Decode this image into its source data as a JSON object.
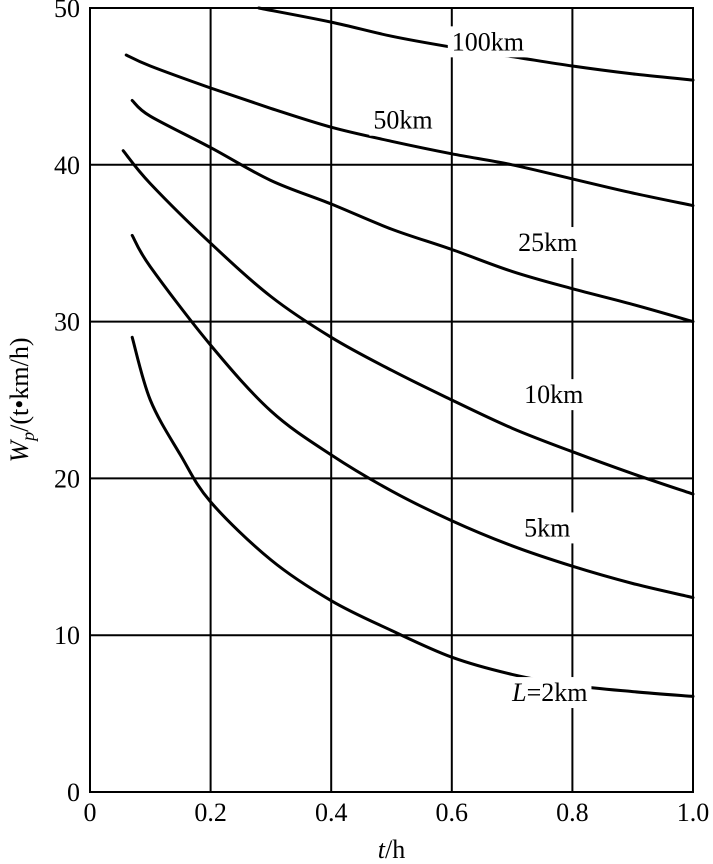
{
  "chart_data": {
    "type": "line",
    "xlabel": "t/h",
    "ylabel": "Wp/(t•km/h)",
    "xlim": [
      0,
      1.0
    ],
    "ylim": [
      0,
      50
    ],
    "xticks": [
      "0",
      "0.2",
      "0.4",
      "0.6",
      "0.8",
      "1.0"
    ],
    "yticks": [
      "0",
      "10",
      "20",
      "30",
      "40",
      "50"
    ],
    "grid": true,
    "series": [
      {
        "name": "100km",
        "label_at": [
          0.6,
          47.3
        ],
        "points": [
          [
            0.28,
            50
          ],
          [
            0.4,
            49.1
          ],
          [
            0.5,
            48.2
          ],
          [
            0.6,
            47.5
          ],
          [
            0.7,
            46.9
          ],
          [
            0.8,
            46.3
          ],
          [
            0.9,
            45.8
          ],
          [
            1.0,
            45.4
          ]
        ]
      },
      {
        "name": "50km",
        "label_at": [
          0.47,
          42.3
        ],
        "points": [
          [
            0.06,
            47
          ],
          [
            0.1,
            46.3
          ],
          [
            0.2,
            44.9
          ],
          [
            0.3,
            43.6
          ],
          [
            0.4,
            42.4
          ],
          [
            0.5,
            41.5
          ],
          [
            0.6,
            40.7
          ],
          [
            0.7,
            40.0
          ],
          [
            0.8,
            39.1
          ],
          [
            0.9,
            38.2
          ],
          [
            1.0,
            37.4
          ]
        ]
      },
      {
        "name": "25km",
        "label_at": [
          0.71,
          34.5
        ],
        "points": [
          [
            0.07,
            44.1
          ],
          [
            0.1,
            43.1
          ],
          [
            0.2,
            41.1
          ],
          [
            0.3,
            39.0
          ],
          [
            0.4,
            37.5
          ],
          [
            0.5,
            35.9
          ],
          [
            0.6,
            34.6
          ],
          [
            0.7,
            33.2
          ],
          [
            0.8,
            32.1
          ],
          [
            0.9,
            31.1
          ],
          [
            1.0,
            30.0
          ]
        ]
      },
      {
        "name": "10km",
        "label_at": [
          0.72,
          24.8
        ],
        "points": [
          [
            0.055,
            40.9
          ],
          [
            0.1,
            38.8
          ],
          [
            0.2,
            35.0
          ],
          [
            0.3,
            31.6
          ],
          [
            0.4,
            29.0
          ],
          [
            0.5,
            26.9
          ],
          [
            0.6,
            25.0
          ],
          [
            0.7,
            23.2
          ],
          [
            0.8,
            21.7
          ],
          [
            0.9,
            20.3
          ],
          [
            1.0,
            19.0
          ]
        ]
      },
      {
        "name": "5km",
        "label_at": [
          0.72,
          16.3
        ],
        "points": [
          [
            0.07,
            35.5
          ],
          [
            0.1,
            33.5
          ],
          [
            0.2,
            28.5
          ],
          [
            0.3,
            24.3
          ],
          [
            0.4,
            21.5
          ],
          [
            0.5,
            19.2
          ],
          [
            0.6,
            17.3
          ],
          [
            0.7,
            15.7
          ],
          [
            0.8,
            14.4
          ],
          [
            0.9,
            13.3
          ],
          [
            1.0,
            12.4
          ]
        ]
      },
      {
        "name": "L=2km",
        "label_at": [
          0.7,
          5.8
        ],
        "points": [
          [
            0.07,
            29.0
          ],
          [
            0.1,
            25.0
          ],
          [
            0.15,
            21.5
          ],
          [
            0.2,
            18.5
          ],
          [
            0.3,
            14.8
          ],
          [
            0.4,
            12.2
          ],
          [
            0.5,
            10.3
          ],
          [
            0.6,
            8.6
          ],
          [
            0.7,
            7.5
          ],
          [
            0.8,
            6.8
          ],
          [
            0.9,
            6.4
          ],
          [
            1.0,
            6.1
          ]
        ]
      }
    ]
  }
}
